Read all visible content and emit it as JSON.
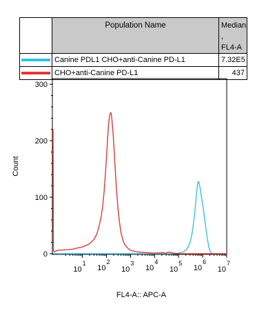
{
  "table": {
    "header_name": "Population Name",
    "header_median_line1": "Median ,",
    "header_median_line2": "FL4-A",
    "rows": [
      {
        "name": "Canine PDL1 CHO+anti-Canine PD-L1",
        "median": "7.32E5",
        "color": "#33c3e0"
      },
      {
        "name": "CHO+anti-Canine PD-L1",
        "median": "437",
        "color": "#e03838"
      }
    ]
  },
  "chart_data": {
    "type": "line",
    "xlabel": "FL4-A:: APC-A",
    "ylabel": "Count",
    "xscale": "log",
    "xlim": [
      0.6,
      10000000
    ],
    "ylim": [
      0,
      310
    ],
    "y_ticks": [
      0,
      100,
      200,
      300
    ],
    "x_ticks": [
      {
        "value": 10,
        "base": "10",
        "exp": "1"
      },
      {
        "value": 100,
        "base": "10",
        "exp": "2"
      },
      {
        "value": 1000,
        "base": "10",
        "exp": "3"
      },
      {
        "value": 10000,
        "base": "10",
        "exp": "4"
      },
      {
        "value": 100000,
        "base": "10",
        "exp": "5"
      },
      {
        "value": 1000000,
        "base": "10",
        "exp": "6"
      },
      {
        "value": 10000000,
        "base": "10",
        "exp": "7"
      }
    ],
    "series": [
      {
        "name": "Canine PDL1 CHO+anti-Canine PD-L1",
        "color": "#33c3e0",
        "points": [
          [
            0.6,
            0
          ],
          [
            100,
            0
          ],
          [
            1000,
            0
          ],
          [
            10000,
            0
          ],
          [
            50000,
            0
          ],
          [
            100000,
            1
          ],
          [
            150000,
            3
          ],
          [
            200000,
            6
          ],
          [
            250000,
            12
          ],
          [
            300000,
            20
          ],
          [
            350000,
            32
          ],
          [
            400000,
            48
          ],
          [
            450000,
            65
          ],
          [
            500000,
            85
          ],
          [
            550000,
            105
          ],
          [
            600000,
            120
          ],
          [
            650000,
            128
          ],
          [
            700000,
            126
          ],
          [
            750000,
            121
          ],
          [
            800000,
            114
          ],
          [
            900000,
            100
          ],
          [
            1000000,
            88
          ],
          [
            1100000,
            75
          ],
          [
            1200000,
            62
          ],
          [
            1300000,
            52
          ],
          [
            1400000,
            40
          ],
          [
            1600000,
            25
          ],
          [
            1800000,
            12
          ],
          [
            2000000,
            5
          ],
          [
            2300000,
            1
          ],
          [
            2600000,
            0
          ],
          [
            10000000,
            0
          ]
        ]
      },
      {
        "name": "CHO+anti-Canine PD-L1",
        "color": "#e03838",
        "points": [
          [
            0.6,
            220
          ],
          [
            0.62,
            5
          ],
          [
            0.7,
            3
          ],
          [
            0.8,
            5
          ],
          [
            1,
            6
          ],
          [
            2,
            7
          ],
          [
            4,
            8
          ],
          [
            6,
            10
          ],
          [
            10,
            12
          ],
          [
            15,
            15
          ],
          [
            20,
            18
          ],
          [
            30,
            25
          ],
          [
            40,
            35
          ],
          [
            50,
            50
          ],
          [
            60,
            65
          ],
          [
            70,
            85
          ],
          [
            80,
            110
          ],
          [
            90,
            140
          ],
          [
            100,
            170
          ],
          [
            110,
            200
          ],
          [
            120,
            225
          ],
          [
            130,
            240
          ],
          [
            140,
            247
          ],
          [
            150,
            250
          ],
          [
            160,
            246
          ],
          [
            170,
            235
          ],
          [
            190,
            210
          ],
          [
            210,
            180
          ],
          [
            230,
            150
          ],
          [
            260,
            115
          ],
          [
            300,
            80
          ],
          [
            350,
            55
          ],
          [
            400,
            38
          ],
          [
            500,
            22
          ],
          [
            600,
            15
          ],
          [
            800,
            9
          ],
          [
            1000,
            6
          ],
          [
            2000,
            3
          ],
          [
            5000,
            2
          ],
          [
            10000,
            1
          ],
          [
            20000,
            2
          ],
          [
            30000,
            1
          ],
          [
            40000,
            3
          ],
          [
            60000,
            1
          ],
          [
            100000,
            0
          ],
          [
            300000,
            0
          ],
          [
            10000000,
            0
          ]
        ]
      }
    ]
  }
}
